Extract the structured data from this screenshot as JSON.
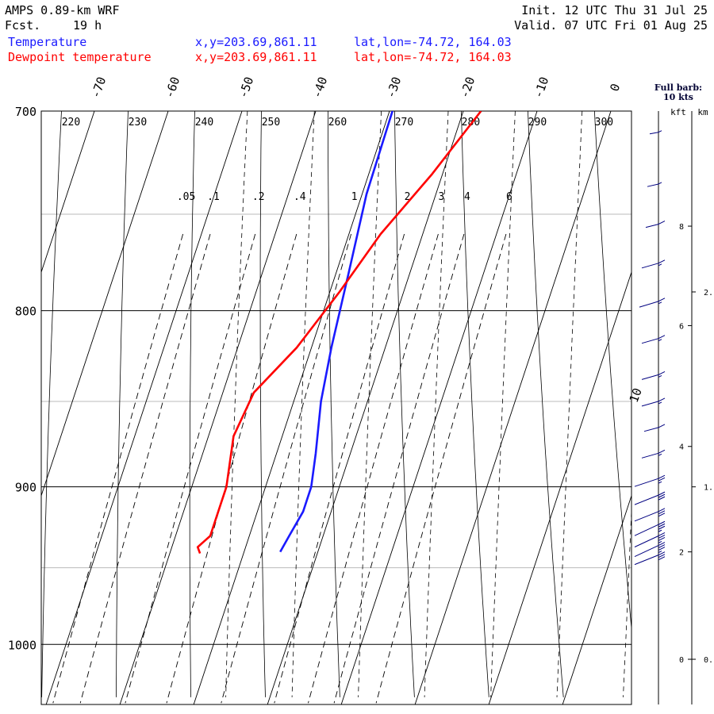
{
  "header": {
    "model": "AMPS 0.89-km WRF",
    "fcst_label": "Fcst.",
    "fcst_value": "19 h",
    "init": "Init. 12 UTC Thu 31 Jul 25",
    "valid": "Valid. 07 UTC Fri 01 Aug 25",
    "legend": [
      {
        "name": "Temperature",
        "color": "#1a1aff",
        "xy": "x,y=203.69,861.11",
        "latlon": "lat,lon=-74.72, 164.03"
      },
      {
        "name": "Dewpoint temperature",
        "color": "#ff0000",
        "xy": "x,y=203.69,861.11",
        "latlon": "lat,lon=-74.72, 164.03"
      }
    ]
  },
  "barb_note": {
    "line1": "Full barb:",
    "line2": "10 kts"
  },
  "height_axis": {
    "kft_label": "kft",
    "km_label": "km",
    "kft_ticks": [
      {
        "v": 8,
        "p": 756
      },
      {
        "v": 6,
        "p": 808
      },
      {
        "v": 4,
        "p": 876
      },
      {
        "v": 2,
        "p": 940
      },
      {
        "v": 0,
        "p": 1010
      }
    ],
    "km_ticks": [
      {
        "v": "2.",
        "p": 790
      },
      {
        "v": "1.",
        "p": 900
      },
      {
        "v": "0.",
        "p": 1010
      }
    ]
  },
  "chart_data": {
    "type": "line",
    "diagram": "skew-T log-p",
    "y_axis": {
      "scale": "log",
      "ylim": [
        1041,
        700
      ],
      "ticks": [
        700,
        800,
        900,
        1000
      ]
    },
    "x_axis": {
      "xlim": [
        -75,
        10
      ],
      "skewed_ticks": [
        -70,
        -60,
        -50,
        -40,
        -30,
        -20,
        -10,
        0,
        10
      ]
    },
    "dry_adiabat_labels": [
      220,
      230,
      240,
      250,
      260,
      270,
      280,
      290,
      300
    ],
    "mixing_ratio_labels": [
      ".05",
      ".1",
      ".2",
      ".4",
      "1",
      "2",
      "3",
      "4",
      "6"
    ],
    "series": [
      {
        "name": "Temperature",
        "color": "#1a1aff",
        "points": [
          [
            700,
            -29.6
          ],
          [
            740,
            -29.4
          ],
          [
            780,
            -28.3
          ],
          [
            820,
            -27.3
          ],
          [
            850,
            -26.3
          ],
          [
            880,
            -24.7
          ],
          [
            900,
            -23.8
          ],
          [
            915,
            -23.8
          ],
          [
            930,
            -24.6
          ],
          [
            940,
            -25.1
          ]
        ]
      },
      {
        "name": "Dewpoint temperature",
        "color": "#ff0000",
        "points": [
          [
            700,
            -17.6
          ],
          [
            730,
            -21.4
          ],
          [
            760,
            -25.7
          ],
          [
            790,
            -28.7
          ],
          [
            820,
            -32.0
          ],
          [
            845,
            -35.8
          ],
          [
            870,
            -36.6
          ],
          [
            900,
            -35.3
          ],
          [
            920,
            -35.3
          ],
          [
            930,
            -35.3
          ],
          [
            937,
            -36.5
          ],
          [
            941,
            -35.9
          ]
        ]
      }
    ],
    "wind_barbs": [
      {
        "p": 710,
        "spd": 5
      },
      {
        "p": 735,
        "spd": 8
      },
      {
        "p": 755,
        "spd": 10
      },
      {
        "p": 775,
        "spd": 15
      },
      {
        "p": 795,
        "spd": 18
      },
      {
        "p": 815,
        "spd": 15
      },
      {
        "p": 835,
        "spd": 15
      },
      {
        "p": 850,
        "spd": 15
      },
      {
        "p": 865,
        "spd": 12
      },
      {
        "p": 880,
        "spd": 15
      },
      {
        "p": 895,
        "spd": 25
      },
      {
        "p": 905,
        "spd": 30
      },
      {
        "p": 915,
        "spd": 30
      },
      {
        "p": 923,
        "spd": 35
      },
      {
        "p": 930,
        "spd": 35
      },
      {
        "p": 936,
        "spd": 35
      },
      {
        "p": 942,
        "spd": 30
      }
    ]
  }
}
